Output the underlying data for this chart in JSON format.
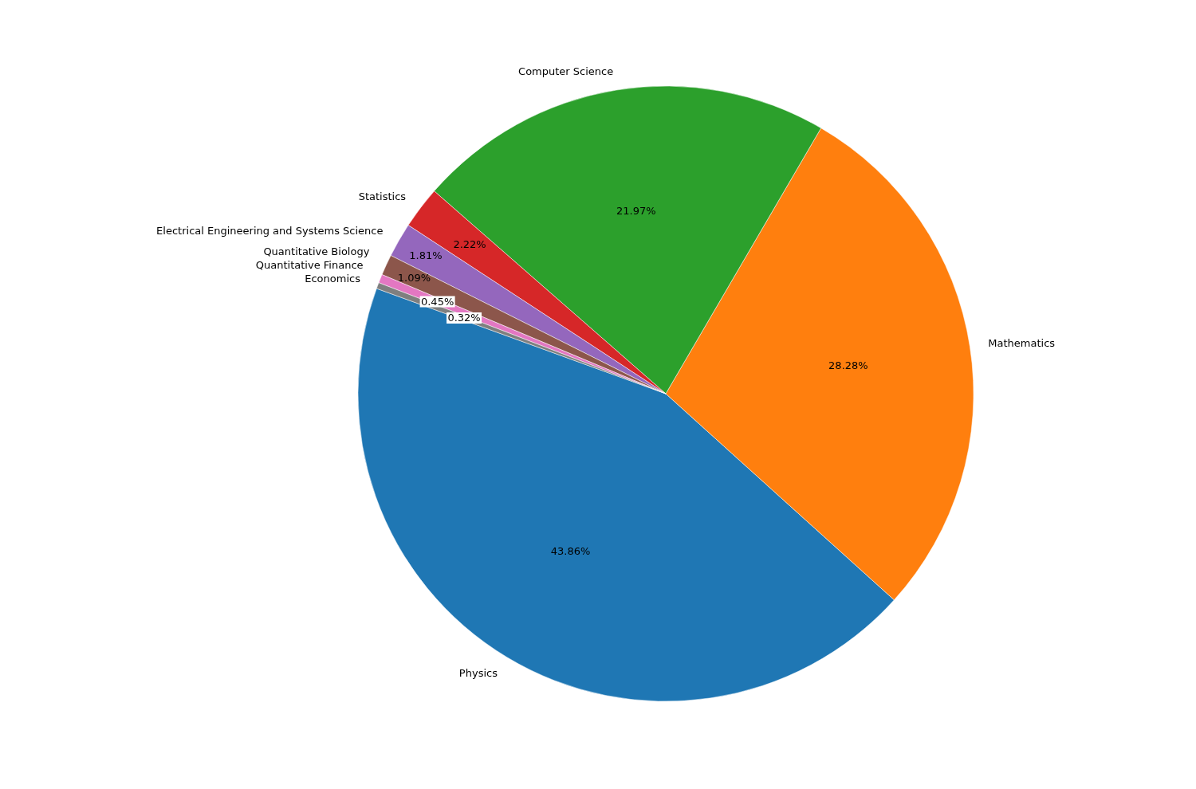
{
  "chart_data": {
    "type": "pie",
    "categories": [
      "Physics",
      "Mathematics",
      "Computer Science",
      "Statistics",
      "Electrical Engineering and Systems Science",
      "Quantitative Biology",
      "Quantitative Finance",
      "Economics"
    ],
    "values": [
      43.86,
      28.28,
      21.97,
      2.22,
      1.81,
      1.09,
      0.45,
      0.32
    ],
    "value_labels": [
      "43.86%",
      "28.28%",
      "21.97%",
      "2.22%",
      "1.81%",
      "1.09%",
      "0.45%",
      "0.32%"
    ],
    "colors": [
      "#1f77b4",
      "#ff7f0e",
      "#2ca02c",
      "#d62728",
      "#9467bd",
      "#8c564b",
      "#e377c2",
      "#7f7f7f"
    ]
  }
}
